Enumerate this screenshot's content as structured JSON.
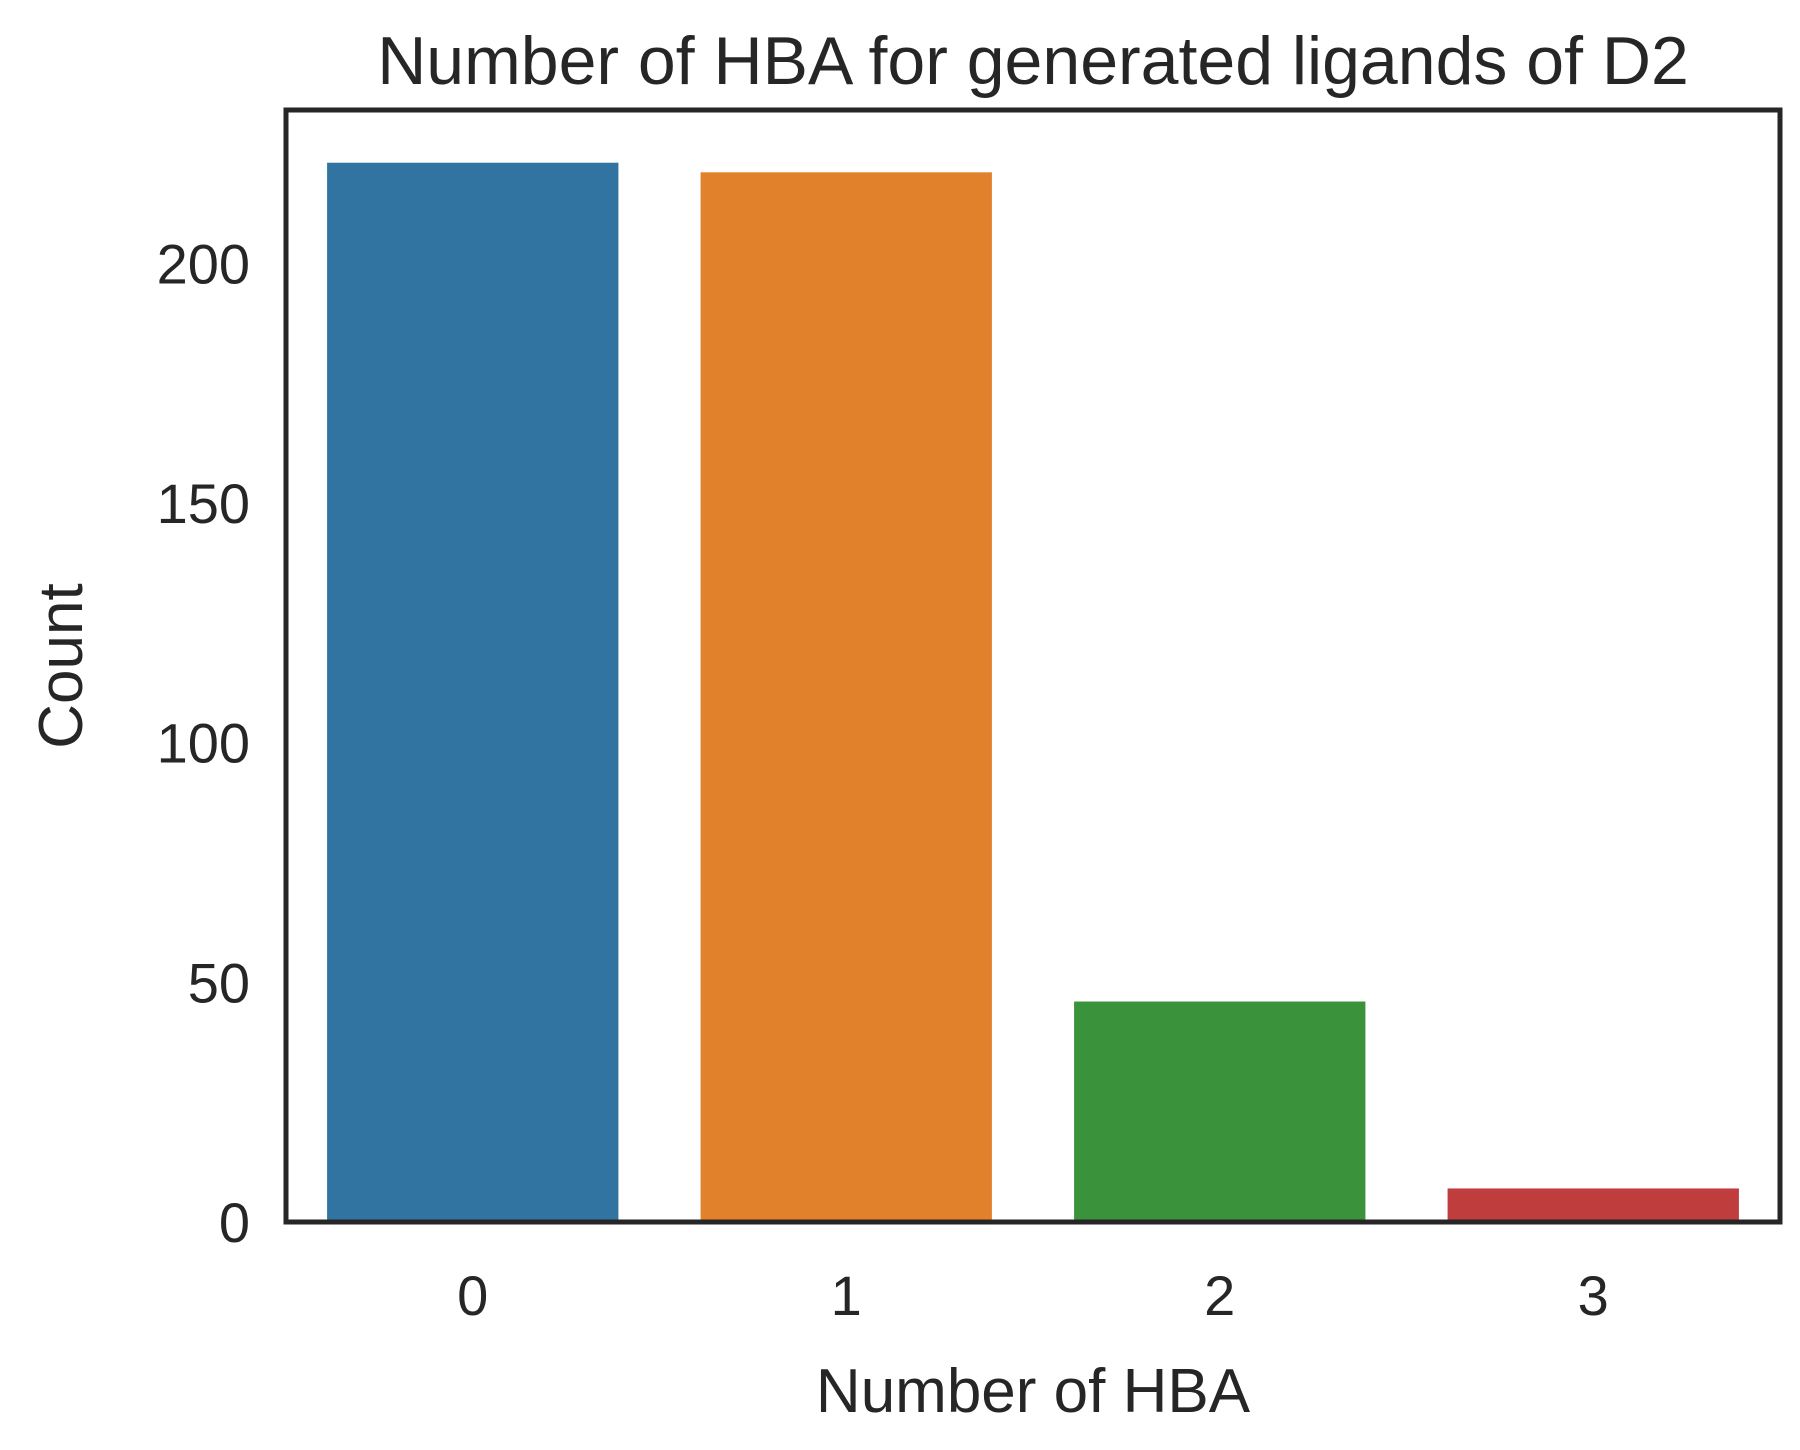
{
  "chart_data": {
    "type": "bar",
    "title": "Number of HBA for generated ligands of D2",
    "xlabel": "Number of HBA",
    "ylabel": "Count",
    "categories": [
      "0",
      "1",
      "2",
      "3"
    ],
    "values": [
      221,
      219,
      46,
      7
    ],
    "colors": [
      "#3274a1",
      "#e1812c",
      "#3a923a",
      "#c03d3e"
    ],
    "yticks": [
      0,
      50,
      100,
      150,
      200
    ],
    "ylim": [
      0,
      232
    ],
    "grid": false,
    "legend": "none"
  }
}
